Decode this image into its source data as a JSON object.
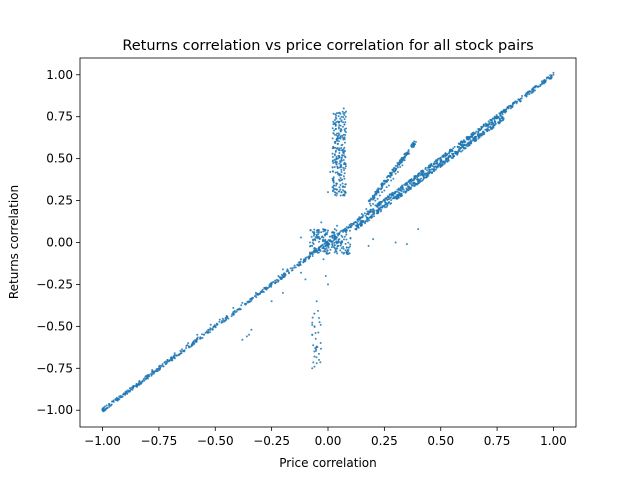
{
  "chart_data": {
    "type": "scatter",
    "title": "Returns correlation vs price correlation for all stock pairs",
    "xlabel": "Price correlation",
    "ylabel": "Returns correlation",
    "xlim": [
      -1.1,
      1.1
    ],
    "ylim": [
      -1.1,
      1.1
    ],
    "xticks": [
      -1.0,
      -0.75,
      -0.5,
      -0.25,
      0.0,
      0.25,
      0.5,
      0.75,
      1.0
    ],
    "xtick_labels": [
      "−1.00",
      "−0.75",
      "−0.50",
      "−0.25",
      "0.00",
      "0.25",
      "0.50",
      "0.75",
      "1.00"
    ],
    "yticks": [
      -1.0,
      -0.75,
      -0.5,
      -0.25,
      0.0,
      0.25,
      0.5,
      0.75,
      1.0
    ],
    "ytick_labels": [
      "−1.00",
      "−0.75",
      "−0.50",
      "−0.25",
      "0.00",
      "0.25",
      "0.50",
      "0.75",
      "1.00"
    ],
    "grid": false,
    "legend": "none",
    "marker_color": "#1f77b4",
    "points": [
      [
        -1.0,
        -1.0
      ],
      [
        -0.95,
        -0.95
      ],
      [
        -0.9,
        -0.9
      ],
      [
        -0.85,
        -0.85
      ],
      [
        -0.8,
        -0.8
      ],
      [
        -0.75,
        -0.75
      ],
      [
        -0.7,
        -0.7
      ],
      [
        -0.65,
        -0.65
      ],
      [
        -0.6,
        -0.6
      ],
      [
        -0.55,
        -0.55
      ],
      [
        -0.5,
        -0.5
      ],
      [
        -0.45,
        -0.45
      ],
      [
        -0.4,
        -0.4
      ],
      [
        -0.35,
        -0.35
      ],
      [
        -0.3,
        -0.3
      ],
      [
        -0.25,
        -0.25
      ],
      [
        -0.2,
        -0.2
      ],
      [
        -0.15,
        -0.15
      ],
      [
        -0.1,
        -0.1
      ],
      [
        -0.05,
        -0.05
      ],
      [
        0.0,
        0.0
      ],
      [
        0.05,
        0.05
      ],
      [
        0.1,
        0.1
      ],
      [
        0.15,
        0.15
      ],
      [
        0.2,
        0.2
      ],
      [
        0.25,
        0.25
      ],
      [
        0.3,
        0.3
      ],
      [
        0.35,
        0.35
      ],
      [
        0.4,
        0.4
      ],
      [
        0.45,
        0.45
      ],
      [
        0.5,
        0.5
      ],
      [
        0.55,
        0.55
      ],
      [
        0.6,
        0.6
      ],
      [
        0.65,
        0.65
      ],
      [
        0.7,
        0.7
      ],
      [
        0.75,
        0.75
      ],
      [
        0.8,
        0.8
      ],
      [
        0.85,
        0.85
      ],
      [
        0.9,
        0.9
      ],
      [
        0.95,
        0.95
      ],
      [
        1.0,
        1.0
      ],
      [
        -0.97,
        -0.98
      ],
      [
        -0.88,
        -0.89
      ],
      [
        -0.78,
        -0.76
      ],
      [
        -0.68,
        -0.66
      ],
      [
        -0.58,
        -0.55
      ],
      [
        -0.48,
        -0.46
      ],
      [
        -0.38,
        -0.36
      ],
      [
        -0.28,
        -0.27
      ],
      [
        -0.18,
        -0.16
      ],
      [
        -0.08,
        -0.06
      ],
      [
        -0.62,
        -0.6
      ],
      [
        -0.52,
        -0.49
      ],
      [
        -0.42,
        -0.39
      ],
      [
        -0.32,
        -0.3
      ],
      [
        -0.22,
        -0.2
      ],
      [
        -0.12,
        -0.1
      ],
      [
        0.02,
        0.04
      ],
      [
        0.08,
        0.07
      ],
      [
        0.12,
        0.12
      ],
      [
        0.18,
        0.17
      ],
      [
        0.22,
        0.21
      ],
      [
        0.28,
        0.27
      ],
      [
        0.32,
        0.31
      ],
      [
        0.38,
        0.37
      ],
      [
        0.42,
        0.41
      ],
      [
        0.48,
        0.47
      ],
      [
        0.52,
        0.53
      ],
      [
        0.58,
        0.59
      ],
      [
        0.62,
        0.63
      ],
      [
        0.68,
        0.69
      ],
      [
        0.72,
        0.73
      ],
      [
        0.78,
        0.79
      ],
      [
        0.82,
        0.83
      ],
      [
        0.88,
        0.89
      ],
      [
        0.92,
        0.93
      ],
      [
        0.98,
        0.98
      ],
      [
        0.15,
        0.13
      ],
      [
        0.2,
        0.18
      ],
      [
        0.25,
        0.22
      ],
      [
        0.3,
        0.27
      ],
      [
        0.35,
        0.32
      ],
      [
        0.4,
        0.37
      ],
      [
        0.45,
        0.43
      ],
      [
        0.5,
        0.48
      ],
      [
        0.55,
        0.53
      ],
      [
        0.6,
        0.58
      ],
      [
        0.2,
        0.23
      ],
      [
        0.22,
        0.26
      ],
      [
        0.24,
        0.3
      ],
      [
        0.26,
        0.33
      ],
      [
        0.28,
        0.37
      ],
      [
        0.3,
        0.41
      ],
      [
        0.32,
        0.45
      ],
      [
        0.34,
        0.49
      ],
      [
        0.36,
        0.53
      ],
      [
        0.38,
        0.57
      ],
      [
        0.39,
        0.6
      ],
      [
        0.15,
        0.17
      ],
      [
        0.17,
        0.2
      ],
      [
        0.19,
        0.22
      ],
      [
        0.21,
        0.25
      ],
      [
        0.23,
        0.28
      ],
      [
        0.25,
        0.31
      ],
      [
        0.27,
        0.34
      ],
      [
        0.29,
        0.38
      ],
      [
        0.31,
        0.42
      ],
      [
        0.33,
        0.46
      ],
      [
        0.03,
        0.3
      ],
      [
        0.04,
        0.35
      ],
      [
        0.05,
        0.4
      ],
      [
        0.03,
        0.45
      ],
      [
        0.04,
        0.5
      ],
      [
        0.05,
        0.55
      ],
      [
        0.03,
        0.6
      ],
      [
        0.04,
        0.65
      ],
      [
        0.05,
        0.7
      ],
      [
        0.06,
        0.75
      ],
      [
        0.07,
        0.8
      ],
      [
        0.02,
        0.38
      ],
      [
        0.06,
        0.42
      ],
      [
        0.04,
        0.48
      ],
      [
        0.02,
        0.53
      ],
      [
        0.06,
        0.58
      ],
      [
        0.04,
        0.62
      ],
      [
        0.03,
        0.52
      ],
      [
        0.05,
        0.47
      ],
      [
        0.02,
        0.33
      ],
      [
        0.06,
        0.3
      ],
      [
        0.0,
        0.3
      ],
      [
        0.01,
        0.42
      ],
      [
        0.07,
        0.62
      ],
      [
        0.08,
        0.68
      ],
      [
        0.06,
        0.67
      ],
      [
        0.05,
        0.72
      ],
      [
        0.08,
        0.78
      ],
      [
        -0.06,
        0.02
      ],
      [
        -0.05,
        0.04
      ],
      [
        -0.04,
        0.06
      ],
      [
        -0.03,
        -0.02
      ],
      [
        -0.02,
        0.03
      ],
      [
        -0.01,
        0.05
      ],
      [
        0.0,
        -0.02
      ],
      [
        0.01,
        0.01
      ],
      [
        0.02,
        0.06
      ],
      [
        0.03,
        0.08
      ],
      [
        -0.07,
        -0.02
      ],
      [
        -0.08,
        0.0
      ],
      [
        -0.06,
        -0.04
      ],
      [
        -0.04,
        -0.06
      ],
      [
        -0.02,
        -0.03
      ],
      [
        0.04,
        0.1
      ],
      [
        0.05,
        0.02
      ],
      [
        0.06,
        0.04
      ],
      [
        0.08,
        0.06
      ],
      [
        0.1,
        0.09
      ],
      [
        -0.03,
        0.12
      ],
      [
        -0.02,
        -0.1
      ],
      [
        -0.01,
        -0.2
      ],
      [
        0.0,
        -0.25
      ],
      [
        -0.05,
        -0.35
      ],
      [
        -0.04,
        -0.45
      ],
      [
        -0.06,
        -0.5
      ],
      [
        -0.07,
        -0.55
      ],
      [
        -0.05,
        -0.62
      ],
      [
        -0.06,
        -0.68
      ],
      [
        -0.05,
        -0.72
      ],
      [
        -0.06,
        -0.74
      ],
      [
        -0.07,
        -0.75
      ],
      [
        -0.04,
        -0.7
      ],
      [
        -0.12,
        -0.18
      ],
      [
        -0.1,
        -0.22
      ],
      [
        -0.2,
        -0.16
      ],
      [
        -0.2,
        -0.3
      ],
      [
        -0.25,
        -0.35
      ],
      [
        -0.38,
        -0.58
      ],
      [
        -0.36,
        -0.56
      ],
      [
        -0.34,
        -0.52
      ],
      [
        -0.35,
        -0.55
      ],
      [
        0.3,
        0.0
      ],
      [
        0.35,
        -0.01
      ],
      [
        0.4,
        0.08
      ],
      [
        0.2,
        0.02
      ],
      [
        0.18,
        -0.02
      ],
      [
        -0.12,
        0.03
      ],
      [
        -0.08,
        -0.08
      ]
    ]
  }
}
